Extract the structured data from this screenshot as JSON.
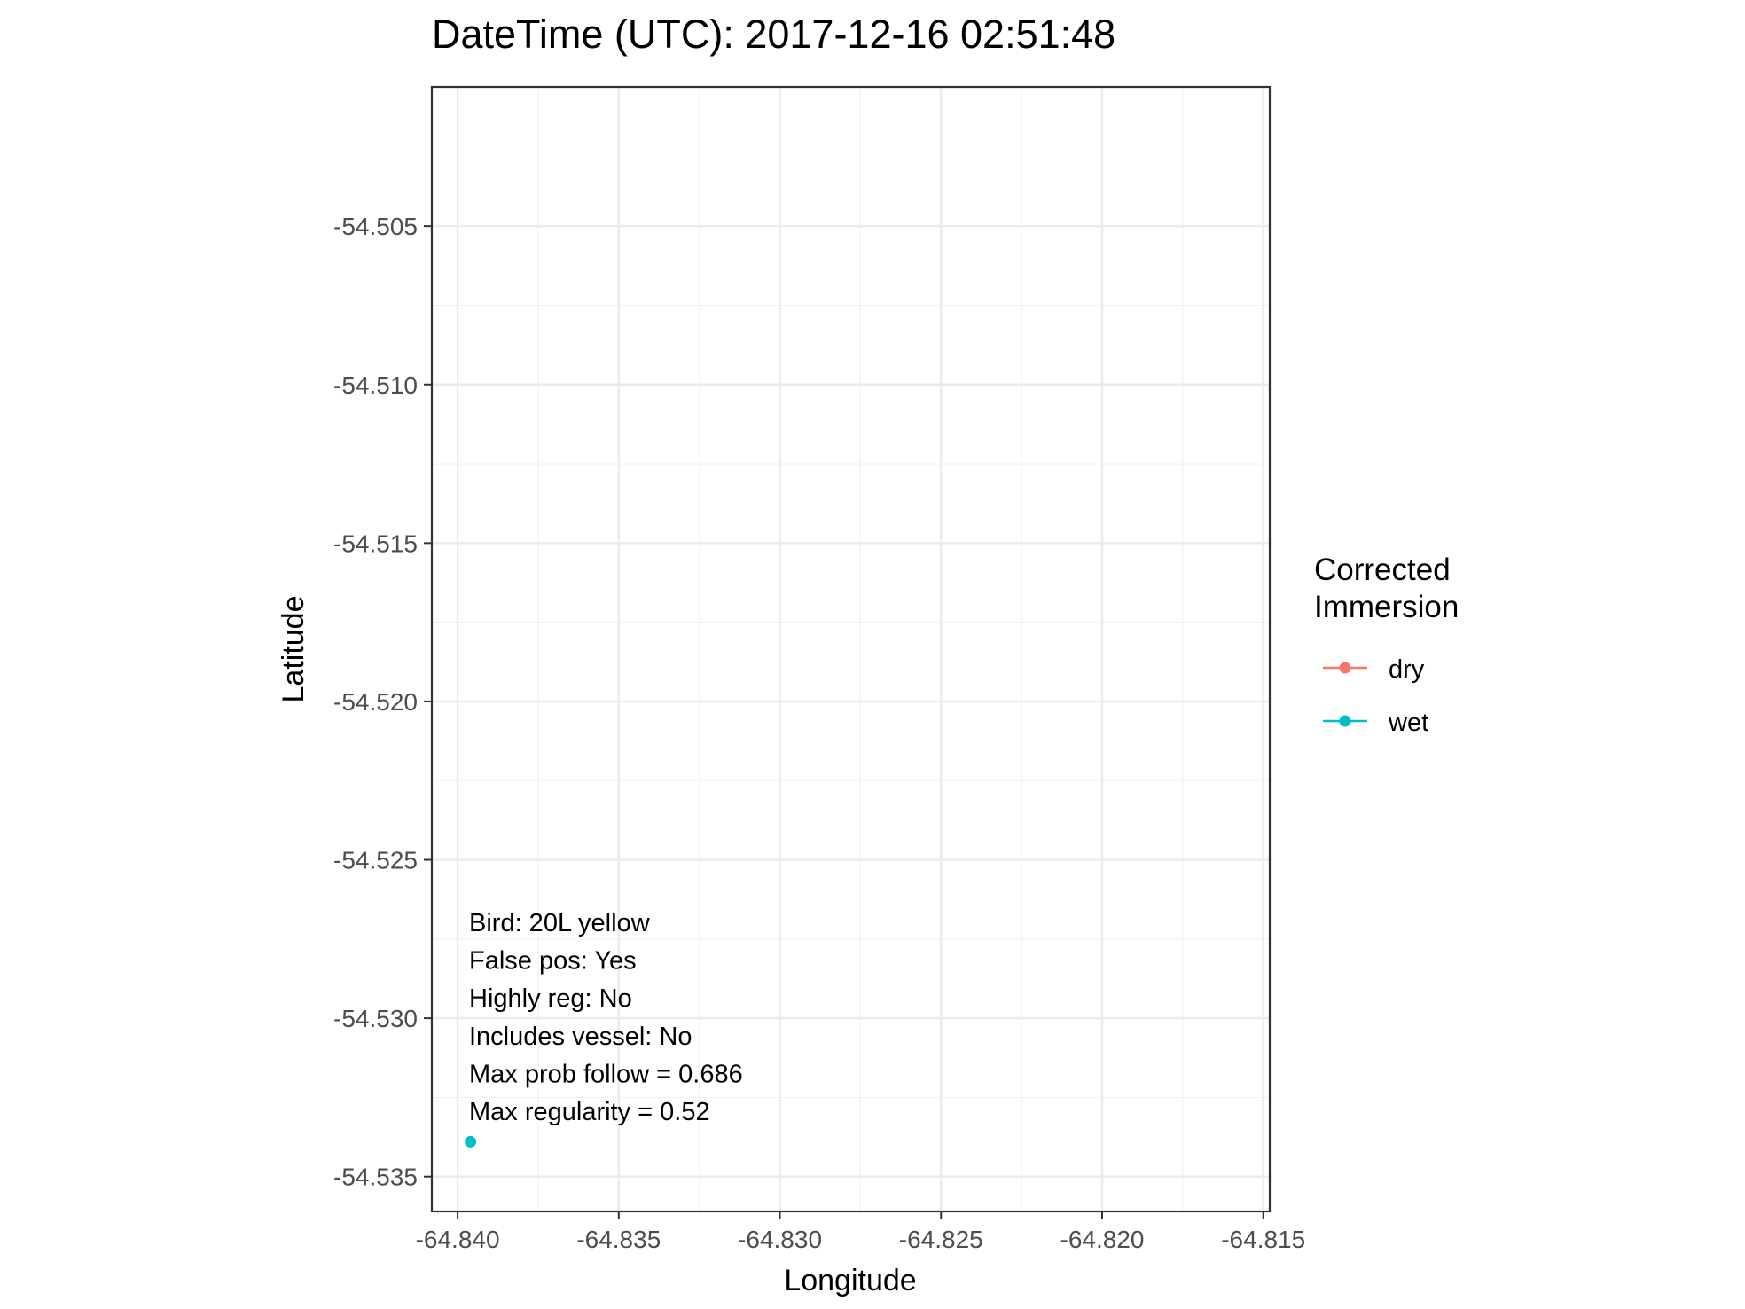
{
  "chart_data": {
    "type": "scatter",
    "title": "DateTime (UTC): 2017-12-16 02:51:48",
    "xlabel": "Longitude",
    "ylabel": "Latitude",
    "xlim": [
      -64.8408,
      -64.8148
    ],
    "ylim": [
      -54.5361,
      -54.5006
    ],
    "xticks": [
      -64.84,
      -64.835,
      -64.83,
      -64.825,
      -64.82,
      -64.815
    ],
    "yticks": [
      -54.505,
      -54.51,
      -54.515,
      -54.52,
      -54.525,
      -54.53,
      -54.535
    ],
    "xtick_labels": [
      "-64.840",
      "-64.835",
      "-64.830",
      "-64.825",
      "-64.820",
      "-64.815"
    ],
    "ytick_labels": [
      "-54.505",
      "-54.510",
      "-54.515",
      "-54.520",
      "-54.525",
      "-54.530",
      "-54.535"
    ],
    "grid": true,
    "points": [
      {
        "x": -64.8396,
        "y": -54.5339,
        "group": "wet"
      }
    ],
    "annotations": [
      "Bird: 20L yellow",
      "False pos: Yes",
      "Highly reg: No",
      "Includes vessel: No",
      "Max prob follow = 0.686",
      "Max regularity = 0.52"
    ],
    "legend": {
      "title_lines": [
        "Corrected",
        "Immersion"
      ],
      "placement": "right",
      "entries": [
        {
          "label": "dry",
          "color": "#F8766D"
        },
        {
          "label": "wet",
          "color": "#00BFC4"
        }
      ]
    }
  }
}
